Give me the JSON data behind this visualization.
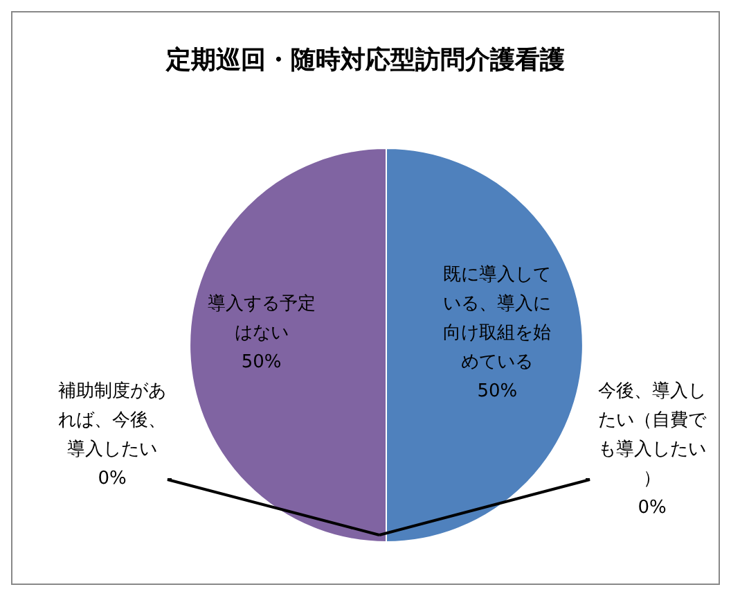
{
  "chart_data": {
    "type": "pie",
    "title": "定期巡回・随時対応型訪問介護看護",
    "categories": [
      "既に導入している、導入に向け取組を始めている",
      "今後、導入したい（自費でも導入したい）",
      "補助制度があれば、今後、導入したい",
      "導入する予定はない"
    ],
    "values": [
      50,
      0,
      0,
      50
    ],
    "colors": [
      "#4f81bd",
      "#c0504d",
      "#9bbb59",
      "#8064a2"
    ],
    "value_labels": [
      "50%",
      "0%",
      "0%",
      "50%"
    ],
    "legend": false
  }
}
